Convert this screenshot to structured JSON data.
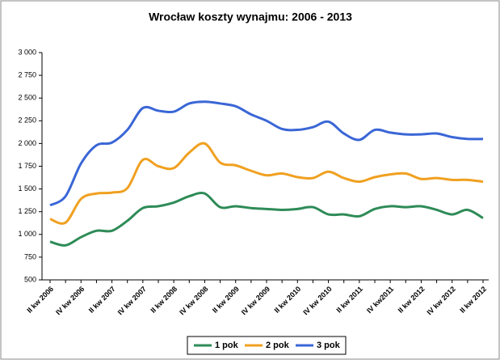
{
  "chart_data": {
    "type": "line",
    "title": "Wrocław koszty wynajmu: 2006 - 2013",
    "categories": [
      "II kw 2006",
      null,
      "IV kw 2006",
      null,
      "II kw 2007",
      null,
      "IV kw 2007",
      null,
      "II kw 2008",
      null,
      "IV kw 2008",
      null,
      "II kw 2009",
      null,
      "IV kw 2009",
      null,
      "II kw 2010",
      null,
      "IV kw 2010",
      null,
      "II kw 2011",
      null,
      "IV kw2011",
      null,
      "II kw 2012",
      null,
      "IV kw 2012",
      null,
      "II kw 2012"
    ],
    "series": [
      {
        "name": "1 pok",
        "color": "#2e8b57",
        "values": [
          920,
          880,
          970,
          1040,
          1040,
          1150,
          1290,
          1310,
          1350,
          1420,
          1450,
          1300,
          1310,
          1290,
          1280,
          1270,
          1280,
          1300,
          1220,
          1220,
          1200,
          1280,
          1310,
          1300,
          1310,
          1270,
          1220,
          1270,
          1180
        ]
      },
      {
        "name": "2 pok",
        "color": "#f0a020",
        "values": [
          1170,
          1130,
          1390,
          1450,
          1460,
          1510,
          1820,
          1750,
          1730,
          1900,
          2000,
          1790,
          1760,
          1700,
          1650,
          1670,
          1630,
          1620,
          1690,
          1620,
          1580,
          1630,
          1660,
          1670,
          1610,
          1620,
          1600,
          1600,
          1580
        ]
      },
      {
        "name": "3 pok",
        "color": "#3a66d6",
        "values": [
          1320,
          1420,
          1780,
          1980,
          2010,
          2150,
          2390,
          2360,
          2350,
          2440,
          2460,
          2440,
          2410,
          2320,
          2250,
          2160,
          2150,
          2180,
          2240,
          2110,
          2040,
          2150,
          2120,
          2100,
          2100,
          2110,
          2070,
          2050,
          2050
        ]
      }
    ],
    "ylim": [
      500,
      3000
    ],
    "yticks": [
      500,
      750,
      {
        "value": 1000,
        "label": "1 000"
      },
      {
        "value": 1250,
        "label": "1 250"
      },
      {
        "value": 1500,
        "label": "1 500"
      },
      {
        "value": 1750,
        "label": "1 750"
      },
      {
        "value": 2000,
        "label": "2 000"
      },
      {
        "value": 2250,
        "label": "2 250"
      },
      {
        "value": 2500,
        "label": "2 500"
      },
      {
        "value": 2750,
        "label": "2 750"
      },
      {
        "value": 3000,
        "label": "3 000"
      }
    ],
    "legend": "bottom"
  }
}
